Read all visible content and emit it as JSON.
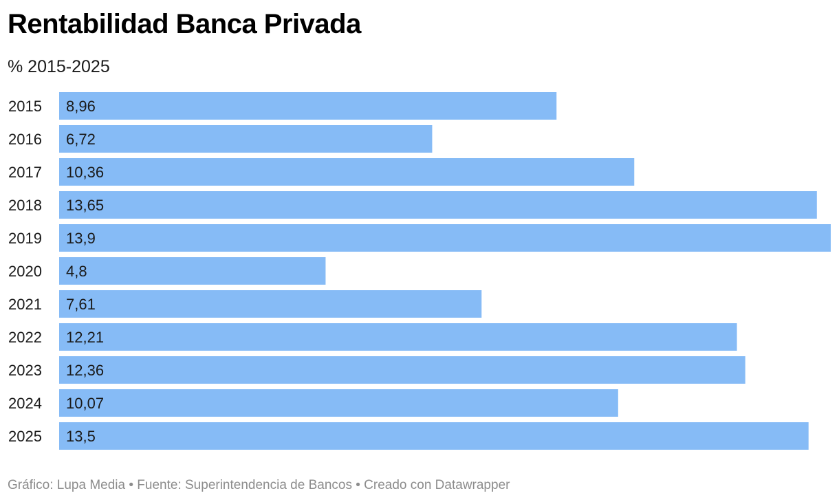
{
  "title": "Rentabilidad Banca Privada",
  "subtitle": "% 2015-2025",
  "footer": "Gráfico: Lupa Media • Fuente: Superintendencia de Bancos • Creado con Datawrapper",
  "colors": {
    "bar": "#86bbf6",
    "label": "#1a1a1a"
  },
  "chart_data": {
    "type": "bar",
    "orientation": "horizontal",
    "categories": [
      "2015",
      "2016",
      "2017",
      "2018",
      "2019",
      "2020",
      "2021",
      "2022",
      "2023",
      "2024",
      "2025"
    ],
    "values": [
      8.96,
      6.72,
      10.36,
      13.65,
      13.9,
      4.8,
      7.61,
      12.21,
      12.36,
      10.07,
      13.5
    ],
    "value_labels": [
      "8,96",
      "6,72",
      "10,36",
      "13,65",
      "13,9",
      "4,8",
      "7,61",
      "12,21",
      "12,36",
      "10,07",
      "13,5"
    ],
    "title": "Rentabilidad Banca Privada",
    "subtitle": "% 2015-2025",
    "xlim": [
      0,
      13.9
    ],
    "grid": false
  }
}
